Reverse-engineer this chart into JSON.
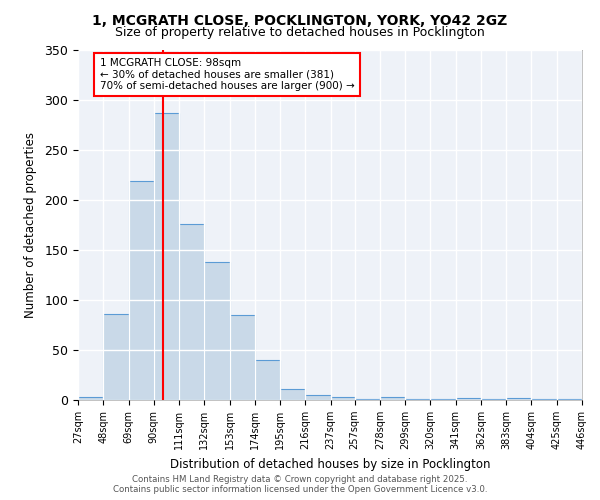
{
  "title_line1": "1, MCGRATH CLOSE, POCKLINGTON, YORK, YO42 2GZ",
  "title_line2": "Size of property relative to detached houses in Pocklington",
  "xlabel": "Distribution of detached houses by size in Pocklington",
  "ylabel": "Number of detached properties",
  "bar_values": [
    3,
    86,
    219,
    287,
    176,
    138,
    85,
    40,
    11,
    5,
    3,
    1,
    3,
    1,
    1,
    2,
    1,
    2,
    1,
    1
  ],
  "bin_edges": [
    27,
    48,
    69,
    90,
    111,
    132,
    153,
    174,
    195,
    216,
    237,
    257,
    278,
    299,
    320,
    341,
    362,
    383,
    404,
    425,
    446
  ],
  "tick_labels": [
    "27sqm",
    "48sqm",
    "69sqm",
    "90sqm",
    "111sqm",
    "132sqm",
    "153sqm",
    "174sqm",
    "195sqm",
    "216sqm",
    "237sqm",
    "257sqm",
    "278sqm",
    "299sqm",
    "320sqm",
    "341sqm",
    "362sqm",
    "383sqm",
    "404sqm",
    "425sqm",
    "446sqm"
  ],
  "bar_color": "#c9d9e8",
  "bar_edge_color": "#5b9bd5",
  "vline_x": 98,
  "vline_color": "red",
  "annotation_text_line1": "1 MCGRATH CLOSE: 98sqm",
  "annotation_text_line2": "← 30% of detached houses are smaller (381)",
  "annotation_text_line3": "70% of semi-detached houses are larger (900) →",
  "ylim": [
    0,
    350
  ],
  "yticks": [
    0,
    50,
    100,
    150,
    200,
    250,
    300,
    350
  ],
  "footer_line1": "Contains HM Land Registry data © Crown copyright and database right 2025.",
  "footer_line2": "Contains public sector information licensed under the Open Government Licence v3.0.",
  "bg_color": "#eef2f8",
  "grid_color": "white"
}
